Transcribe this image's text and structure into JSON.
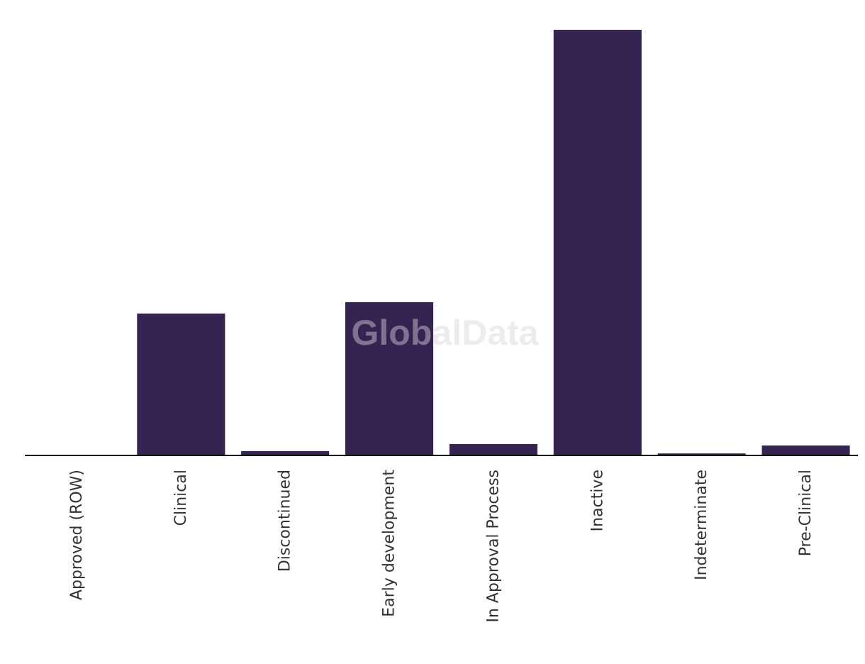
{
  "watermark": "GlobalData",
  "chart_data": {
    "type": "bar",
    "title": "",
    "xlabel": "",
    "ylabel": "",
    "categories": [
      "Approved (ROW)",
      "Clinical",
      "Discontinued",
      "Early development",
      "In Approval Process",
      "Inactive",
      "Indeterminate",
      "Pre-Clinical"
    ],
    "values": [
      0,
      50,
      1.5,
      54,
      4,
      150,
      0.7,
      3.5
    ],
    "ylim": [
      0,
      150
    ],
    "grid": false,
    "legend": "none",
    "colors": {
      "bar": "#352451",
      "axis": "#000000",
      "label": "#333333"
    }
  }
}
